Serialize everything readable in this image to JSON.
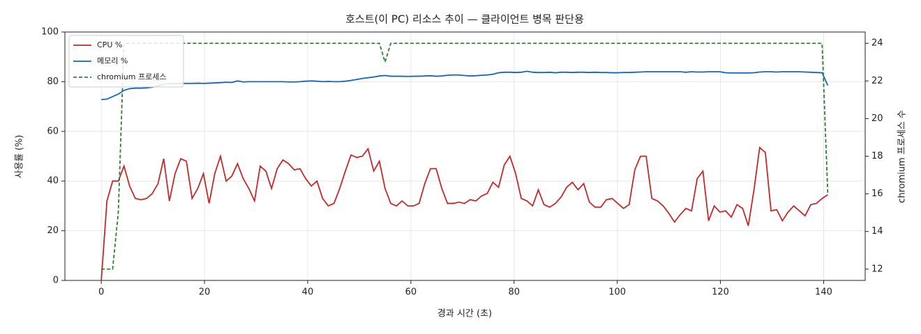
{
  "chart_data": {
    "type": "line",
    "title": "호스트(이 PC) 리소스 추이 — 클라이언트 병목 판단용",
    "xlabel": "경과 시간 (초)",
    "ylabel": "사용률 (%)",
    "y2label": "chromium 프로세스 수",
    "x": [
      0,
      1.1,
      2.2,
      3.3,
      4.4,
      5.5,
      6.6,
      7.7,
      8.8,
      9.9,
      11,
      12.1,
      13.2,
      14.3,
      15.4,
      16.5,
      17.6,
      18.7,
      19.8,
      20.9,
      22,
      23.1,
      24.2,
      25.3,
      26.4,
      27.5,
      28.6,
      29.7,
      30.8,
      31.9,
      33,
      34.1,
      35.2,
      36.3,
      37.4,
      38.5,
      39.6,
      40.7,
      41.8,
      42.9,
      44,
      45.1,
      46.2,
      47.3,
      48.4,
      49.5,
      50.6,
      51.7,
      52.8,
      53.9,
      55,
      56.1,
      57.2,
      58.3,
      59.4,
      60.5,
      61.6,
      62.7,
      63.8,
      64.9,
      66,
      67.1,
      68.2,
      69.3,
      70.4,
      71.5,
      72.6,
      73.7,
      74.8,
      75.9,
      77,
      78.1,
      79.2,
      80.3,
      81.4,
      82.5,
      83.6,
      84.7,
      85.8,
      86.9,
      88,
      89.1,
      90.2,
      91.3,
      92.4,
      93.5,
      94.6,
      95.7,
      96.8,
      97.9,
      99,
      100.1,
      101.2,
      102.3,
      103.4,
      104.5,
      105.6,
      106.7,
      107.8,
      108.9,
      110,
      111.1,
      112.2,
      113.3,
      114.4,
      115.5,
      116.6,
      117.7,
      118.8,
      119.9,
      121,
      122.1,
      123.2,
      124.3,
      125.4,
      126.5,
      127.6,
      128.7,
      129.8,
      130.9,
      132,
      133.1,
      134.2,
      135.3,
      136.4,
      137.5,
      138.6,
      139.7,
      140.8
    ],
    "series": [
      {
        "name": "CPU %",
        "color": "#c62828",
        "values": [
          0,
          32,
          40,
          40,
          46,
          38,
          33,
          32.5,
          33,
          35,
          39,
          49,
          32,
          43,
          49,
          48,
          33,
          37,
          43,
          31,
          43,
          50,
          40,
          42,
          47,
          41,
          37,
          32,
          46,
          44,
          37,
          45,
          48.5,
          47,
          44.5,
          45,
          41,
          38,
          40,
          33,
          30,
          31,
          37,
          44,
          50.5,
          49.5,
          50,
          53,
          44,
          48,
          37,
          31,
          30,
          32,
          30,
          30,
          31,
          39,
          45,
          45,
          37,
          31,
          31,
          31.5,
          31,
          32.5,
          32,
          34,
          35,
          39.5,
          37.5,
          46.5,
          50,
          43,
          33,
          32,
          30,
          36.5,
          30.5,
          29.5,
          31,
          33.5,
          37.5,
          39.5,
          36.5,
          39,
          31.5,
          29.5,
          29.5,
          32.5,
          33,
          31,
          29,
          30.5,
          44.5,
          50,
          50,
          33,
          32,
          30,
          27,
          23.5,
          26.5,
          29,
          28,
          41,
          44,
          24,
          30,
          27.5,
          28,
          25.5,
          30.5,
          29,
          22,
          36.5,
          53.5,
          51.5,
          28,
          28.5,
          24,
          27.5,
          30,
          28,
          26,
          30.5,
          31,
          33,
          34.5
        ]
      },
      {
        "name": "메모리 %",
        "color": "#1565c0",
        "values": [
          72.8,
          73,
          74,
          75,
          76.5,
          77.2,
          77.4,
          77.4,
          77.5,
          77.8,
          78.3,
          79,
          79.2,
          79.2,
          79.3,
          79.3,
          79.3,
          79.4,
          79.3,
          79.4,
          79.5,
          79.6,
          79.8,
          79.7,
          80.3,
          79.9,
          80,
          80,
          80,
          80,
          80,
          80,
          80,
          79.9,
          79.9,
          80,
          80.2,
          80.3,
          80.2,
          80,
          80.1,
          80,
          80,
          80.2,
          80.5,
          80.9,
          81.3,
          81.6,
          81.9,
          82.3,
          82.5,
          82.2,
          82.2,
          82.2,
          82.1,
          82.2,
          82.2,
          82.3,
          82.4,
          82.2,
          82.3,
          82.6,
          82.7,
          82.7,
          82.5,
          82.3,
          82.4,
          82.6,
          82.7,
          83,
          83.6,
          83.8,
          83.8,
          83.7,
          83.8,
          84.2,
          83.8,
          83.7,
          83.7,
          83.8,
          83.6,
          83.8,
          83.8,
          83.7,
          83.8,
          83.8,
          83.7,
          83.8,
          83.7,
          83.7,
          83.6,
          83.6,
          83.7,
          83.7,
          83.8,
          83.9,
          84,
          84,
          84,
          84,
          84,
          84,
          84,
          83.8,
          84,
          83.9,
          83.9,
          84,
          84,
          84,
          83.6,
          83.5,
          83.5,
          83.5,
          83.5,
          83.6,
          83.9,
          84,
          84,
          83.9,
          84,
          84,
          84,
          84,
          83.9,
          83.8,
          83.7,
          83.6,
          78.5
        ]
      },
      {
        "name": "chromium 프로세스",
        "color": "#2e7d32",
        "dashed": true,
        "axis": "y2",
        "values": [
          12,
          12,
          12,
          15,
          24,
          24,
          24,
          24,
          24,
          24,
          24,
          24,
          24,
          24,
          24,
          24,
          24,
          24,
          24,
          24,
          24,
          24,
          24,
          24,
          24,
          24,
          24,
          24,
          24,
          24,
          24,
          24,
          24,
          24,
          24,
          24,
          24,
          24,
          24,
          24,
          24,
          24,
          24,
          24,
          24,
          24,
          24,
          24,
          24,
          24,
          23,
          24,
          24,
          24,
          24,
          24,
          24,
          24,
          24,
          24,
          24,
          24,
          24,
          24,
          24,
          24,
          24,
          24,
          24,
          24,
          24,
          24,
          24,
          24,
          24,
          24,
          24,
          24,
          24,
          24,
          24,
          24,
          24,
          24,
          24,
          24,
          24,
          24,
          24,
          24,
          24,
          24,
          24,
          24,
          24,
          24,
          24,
          24,
          24,
          24,
          24,
          24,
          24,
          24,
          24,
          24,
          24,
          24,
          24,
          24,
          24,
          24,
          24,
          24,
          24,
          24,
          24,
          24,
          24,
          24,
          24,
          24,
          24,
          24,
          24,
          24,
          24,
          24,
          16
        ]
      }
    ],
    "xlim": [
      -7.05,
      148.05
    ],
    "xticks": [
      0,
      20,
      40,
      60,
      80,
      100,
      120,
      140
    ],
    "ylim": [
      0,
      100
    ],
    "yticks": [
      0,
      20,
      40,
      60,
      80,
      100
    ],
    "y2lim": [
      11.4,
      24.6
    ],
    "y2ticks": [
      12,
      14,
      16,
      18,
      20,
      22,
      24
    ],
    "grid": true,
    "legend": "upper left"
  }
}
